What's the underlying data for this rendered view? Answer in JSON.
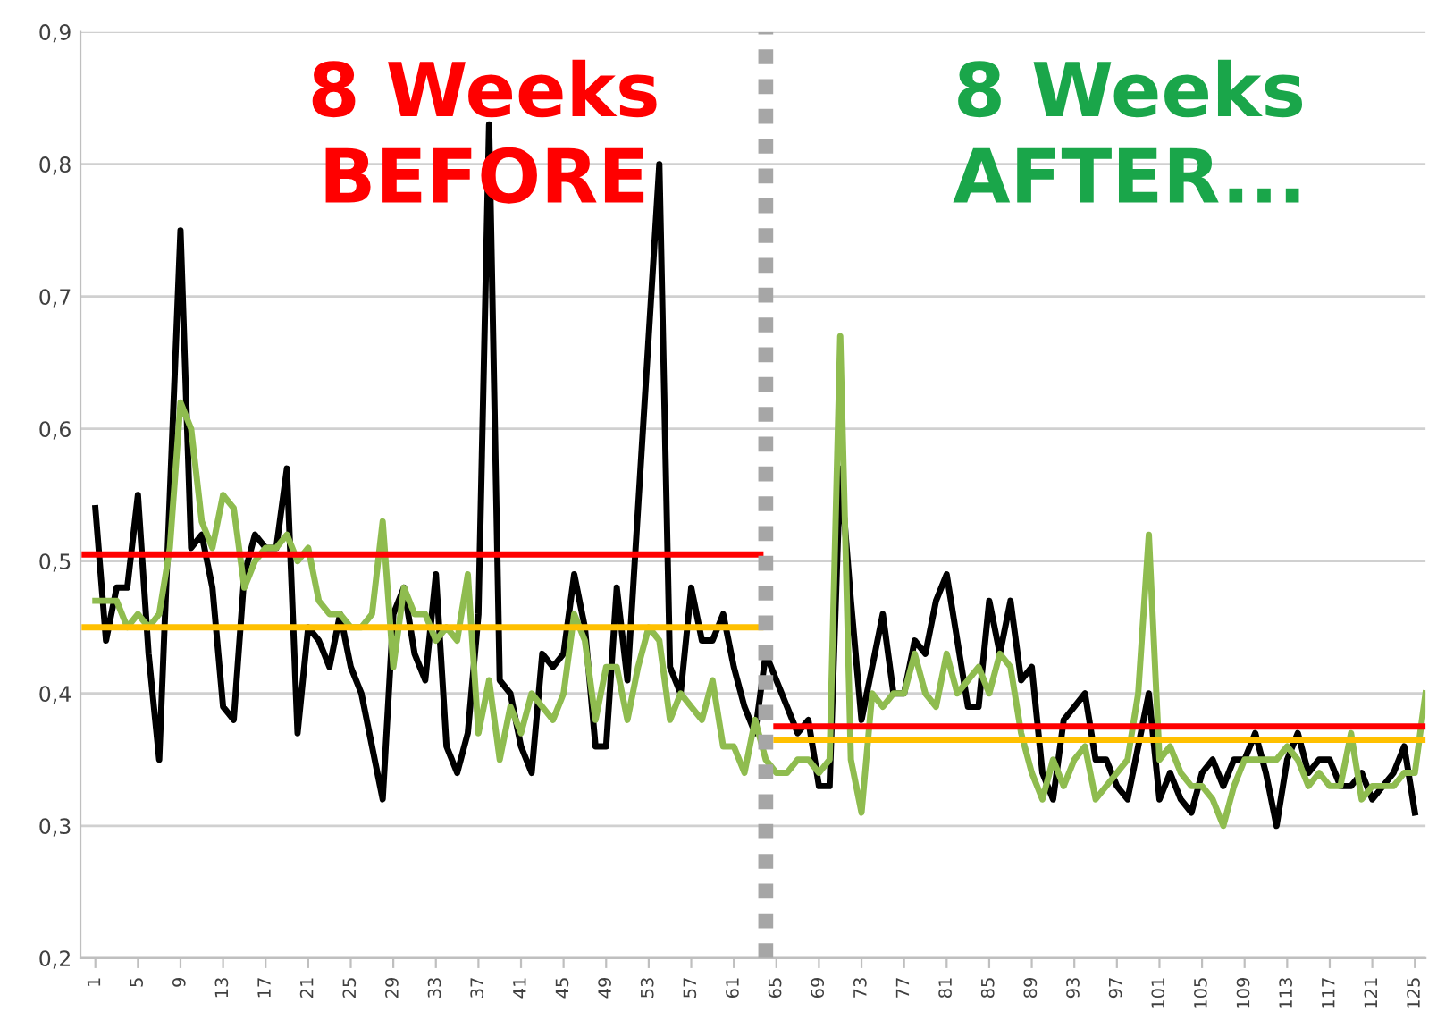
{
  "chart_data": {
    "type": "line",
    "annotations": [
      "8 Weeks\nBEFORE",
      "8 Weeks\nAFTER..."
    ],
    "x": [
      1,
      2,
      3,
      4,
      5,
      6,
      7,
      8,
      9,
      10,
      11,
      12,
      13,
      14,
      15,
      16,
      17,
      18,
      19,
      20,
      21,
      22,
      23,
      24,
      25,
      26,
      27,
      28,
      29,
      30,
      31,
      32,
      33,
      34,
      35,
      36,
      37,
      38,
      39,
      40,
      41,
      42,
      43,
      44,
      45,
      46,
      47,
      48,
      49,
      50,
      51,
      52,
      53,
      54,
      55,
      56,
      57,
      58,
      59,
      60,
      61,
      62,
      63,
      64,
      65,
      66,
      67,
      68,
      69,
      70,
      71,
      72,
      73,
      74,
      75,
      76,
      77,
      78,
      79,
      80,
      81,
      82,
      83,
      84,
      85,
      86,
      87,
      88,
      89,
      90,
      91,
      92,
      93,
      94,
      95,
      96,
      97,
      98,
      99,
      100,
      101,
      102,
      103,
      104,
      105,
      106,
      107,
      108,
      109,
      110,
      111,
      112,
      113,
      114,
      115,
      116,
      117,
      118,
      119,
      120,
      121,
      122,
      123,
      124,
      125,
      126
    ],
    "series": [
      {
        "color": "#000000",
        "values": [
          0.54,
          0.44,
          0.48,
          0.48,
          0.55,
          0.43,
          0.35,
          0.55,
          0.75,
          0.51,
          0.52,
          0.48,
          0.39,
          0.38,
          0.49,
          0.52,
          0.51,
          0.51,
          0.57,
          0.37,
          0.45,
          0.44,
          0.42,
          0.46,
          0.42,
          0.4,
          0.36,
          0.32,
          0.46,
          0.48,
          0.43,
          0.41,
          0.49,
          0.36,
          0.34,
          0.37,
          0.46,
          0.83,
          0.41,
          0.4,
          0.36,
          0.34,
          0.43,
          0.42,
          0.43,
          0.49,
          0.45,
          0.36,
          0.36,
          0.48,
          0.41,
          0.54,
          0.67,
          0.8,
          0.42,
          0.4,
          0.48,
          0.44,
          0.44,
          0.46,
          0.42,
          0.39,
          0.37,
          0.43,
          0.41,
          0.39,
          0.37,
          0.38,
          0.33,
          0.33,
          0.57,
          0.47,
          0.38,
          0.42,
          0.46,
          0.4,
          0.4,
          0.44,
          0.43,
          0.47,
          0.49,
          0.44,
          0.39,
          0.39,
          0.47,
          0.43,
          0.47,
          0.41,
          0.42,
          0.34,
          0.32,
          0.38,
          0.39,
          0.4,
          0.35,
          0.35,
          0.33,
          0.32,
          0.36,
          0.4,
          0.32,
          0.34,
          0.32,
          0.31,
          0.34,
          0.35,
          0.33,
          0.35,
          0.35,
          0.37,
          0.34,
          0.3,
          0.35,
          0.37,
          0.34,
          0.35,
          0.35,
          0.33,
          0.33,
          0.34,
          0.32,
          0.33,
          0.34,
          0.36,
          0.31,
          null
        ]
      },
      {
        "color": "#8fbc4f",
        "values": [
          0.47,
          0.47,
          0.47,
          0.45,
          0.46,
          0.45,
          0.46,
          0.51,
          0.62,
          0.6,
          0.53,
          0.51,
          0.55,
          0.54,
          0.48,
          0.5,
          0.51,
          0.51,
          0.52,
          0.5,
          0.51,
          0.47,
          0.46,
          0.46,
          0.45,
          0.45,
          0.46,
          0.53,
          0.42,
          0.48,
          0.46,
          0.46,
          0.44,
          0.45,
          0.44,
          0.49,
          0.37,
          0.41,
          0.35,
          0.39,
          0.37,
          0.4,
          0.39,
          0.38,
          0.4,
          0.46,
          0.44,
          0.38,
          0.42,
          0.42,
          0.38,
          0.42,
          0.45,
          0.44,
          0.38,
          0.4,
          0.39,
          0.38,
          0.41,
          0.36,
          0.36,
          0.34,
          0.38,
          0.35,
          0.34,
          0.34,
          0.35,
          0.35,
          0.34,
          0.35,
          0.67,
          0.35,
          0.31,
          0.4,
          0.39,
          0.4,
          0.4,
          0.43,
          0.4,
          0.39,
          0.43,
          0.4,
          0.41,
          0.42,
          0.4,
          0.43,
          0.42,
          0.37,
          0.34,
          0.32,
          0.35,
          0.33,
          0.35,
          0.36,
          0.32,
          0.33,
          0.34,
          0.35,
          0.4,
          0.52,
          0.35,
          0.36,
          0.34,
          0.33,
          0.33,
          0.32,
          0.3,
          0.33,
          0.35,
          0.35,
          0.35,
          0.35,
          0.36,
          0.35,
          0.33,
          0.34,
          0.33,
          0.33,
          0.37,
          0.32,
          0.33,
          0.33,
          0.33,
          0.34,
          0.34,
          0.4
        ]
      },
      {
        "color": "#ff0000",
        "x": [
          0,
          63.5
        ],
        "values": [
          0.505,
          0.505
        ]
      },
      {
        "color": "#ffc000",
        "x": [
          0,
          63.5
        ],
        "values": [
          0.45,
          0.45
        ]
      },
      {
        "color": "#ff0000",
        "x": [
          65,
          126
        ],
        "values": [
          0.375,
          0.375
        ]
      },
      {
        "color": "#ffc000",
        "x": [
          65,
          126
        ],
        "values": [
          0.365,
          0.365
        ]
      }
    ],
    "ref_lines": [
      {
        "axis": "x",
        "value": 64,
        "color": "#a6a6a6",
        "line_style": "dashed"
      }
    ],
    "xlim": [
      -0.4,
      126
    ],
    "xticks": [
      1,
      5,
      9,
      13,
      17,
      21,
      25,
      29,
      33,
      37,
      41,
      45,
      49,
      53,
      57,
      61,
      65,
      69,
      73,
      77,
      81,
      85,
      89,
      93,
      97,
      101,
      105,
      109,
      113,
      117,
      121,
      125
    ],
    "ylim": [
      0.2,
      0.9
    ],
    "yticks": [
      {
        "value": 0.2,
        "label": "0,2"
      },
      {
        "value": 0.3,
        "label": "0,3"
      },
      {
        "value": 0.4,
        "label": "0,4"
      },
      {
        "value": 0.5,
        "label": "0,5"
      },
      {
        "value": 0.6,
        "label": "0,6"
      },
      {
        "value": 0.7,
        "label": "0,7"
      },
      {
        "value": 0.8,
        "label": "0,8"
      },
      {
        "value": 0.9,
        "label": "0,9"
      }
    ],
    "grid": "y"
  }
}
